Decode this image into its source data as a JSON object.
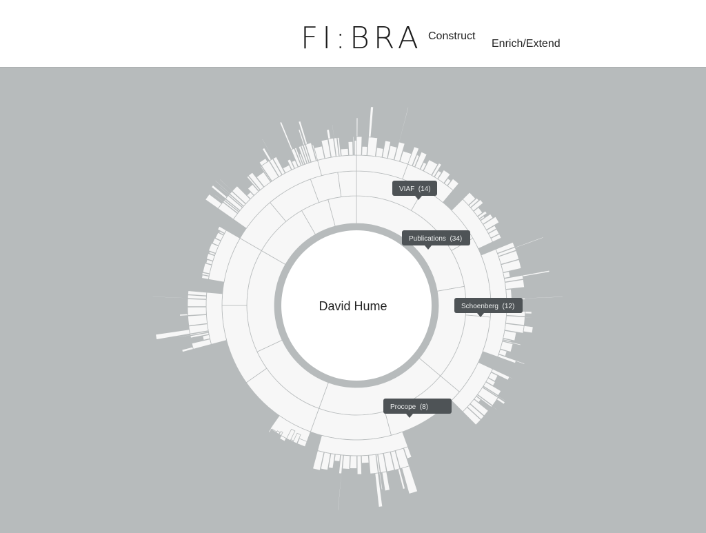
{
  "header": {
    "logo": "FI:BRA",
    "nav": [
      {
        "label": "Construct"
      },
      {
        "label": "Enrich/Extend"
      }
    ]
  },
  "sunburst": {
    "center_label": "David Hume",
    "tooltips": [
      {
        "name": "viaf",
        "label": "VIAF  (14)"
      },
      {
        "name": "publications",
        "label": "Publications  (34)"
      },
      {
        "name": "schoenberg",
        "label": "Schoenberg  (12)"
      },
      {
        "name": "procope",
        "label": "Procope  (8)"
      }
    ]
  },
  "colors": {
    "background": "#b7bbbc",
    "segment_fill": "#f7f7f7",
    "segment_stroke": "#b7bbbc",
    "tooltip": "#4e5356",
    "center_ring": "#b7bbbc"
  }
}
